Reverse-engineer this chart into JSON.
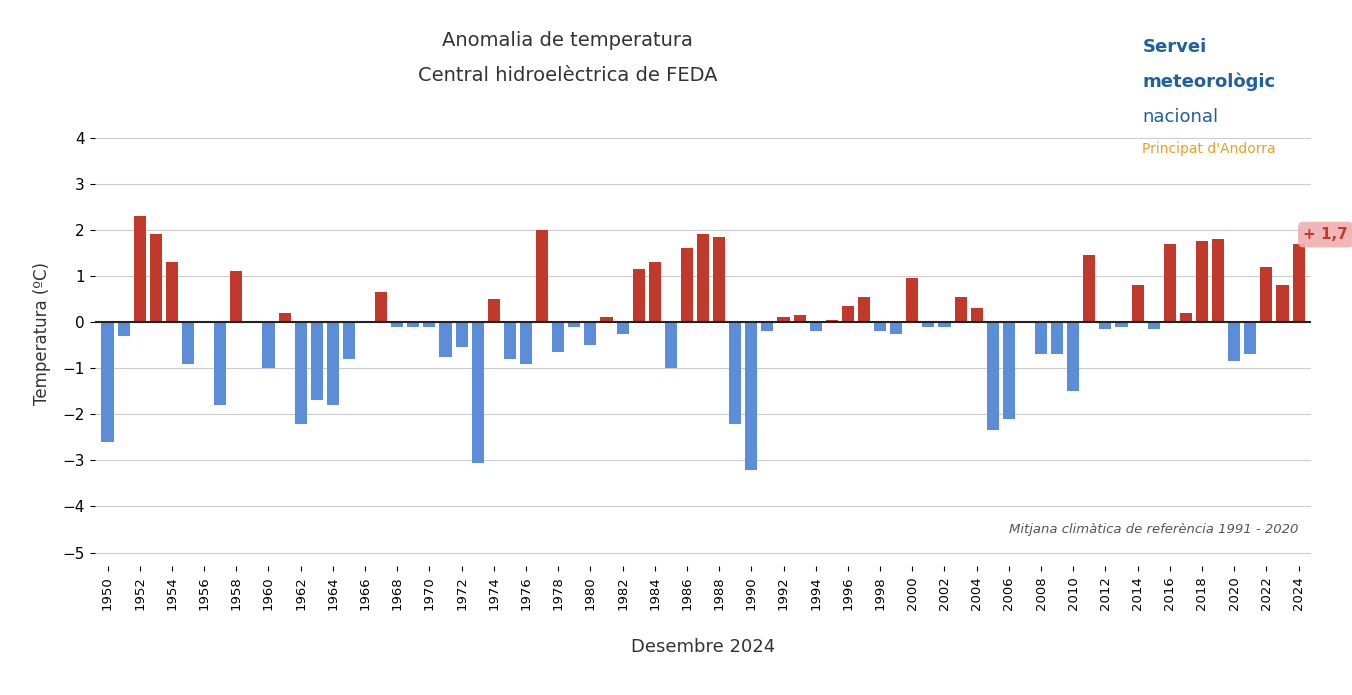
{
  "title_line1": "Anomalia de temperatura",
  "title_line2": "Central hidroelèctrica de FEDA",
  "xlabel": "Desembre 2024",
  "ylabel": "Temperatura (ºC)",
  "reference_text": "Mitjana climàtica de referència 1991 - 2020",
  "ylim": [
    -5.3,
    4.8
  ],
  "yticks": [
    -5,
    -4,
    -3,
    -2,
    -1,
    0,
    1,
    2,
    3,
    4
  ],
  "background_color": "#ffffff",
  "bar_color_pos": "#c0392b",
  "bar_color_neg": "#5b8dd9",
  "annotation_value": "+ 1,7",
  "annotation_color": "#c0392b",
  "annotation_bg": "#f0b0b0",
  "logo_servei": "Servei",
  "logo_meteo": "meteorològic",
  "logo_nacional": "nacional",
  "logo_principat": "Principat d'Andorra",
  "logo_color_blue": "#2060a0",
  "logo_color_orange": "#e8a020",
  "years": [
    1950,
    1951,
    1952,
    1953,
    1954,
    1955,
    1956,
    1957,
    1958,
    1959,
    1960,
    1961,
    1962,
    1963,
    1964,
    1965,
    1966,
    1967,
    1968,
    1969,
    1970,
    1971,
    1972,
    1973,
    1974,
    1975,
    1976,
    1977,
    1978,
    1979,
    1980,
    1981,
    1982,
    1983,
    1984,
    1985,
    1986,
    1987,
    1988,
    1989,
    1990,
    1991,
    1992,
    1993,
    1994,
    1995,
    1996,
    1997,
    1998,
    1999,
    2000,
    2001,
    2002,
    2003,
    2004,
    2005,
    2006,
    2007,
    2008,
    2009,
    2010,
    2011,
    2012,
    2013,
    2014,
    2015,
    2016,
    2017,
    2018,
    2019,
    2020,
    2021,
    2022,
    2023,
    2024
  ],
  "values": [
    -2.6,
    -0.3,
    2.3,
    1.9,
    1.3,
    -0.9,
    0.0,
    -1.8,
    1.1,
    0.0,
    -1.0,
    0.2,
    -2.2,
    -1.7,
    -1.8,
    -0.8,
    0.0,
    0.65,
    -0.1,
    -0.1,
    -0.1,
    -0.75,
    -0.55,
    -3.05,
    0.5,
    -0.8,
    -0.9,
    2.0,
    -0.65,
    -0.1,
    -0.5,
    0.1,
    -0.25,
    1.15,
    1.3,
    -1.0,
    1.6,
    1.9,
    1.85,
    -2.2,
    -3.2,
    -0.2,
    0.1,
    0.15,
    -0.2,
    0.05,
    0.35,
    0.55,
    -0.2,
    -0.25,
    0.95,
    -0.1,
    -0.1,
    0.55,
    0.3,
    -2.35,
    -2.1,
    0.0,
    -0.7,
    -0.7,
    -1.5,
    1.45,
    -0.15,
    -0.1,
    0.8,
    -0.15,
    1.7,
    0.2,
    1.75,
    1.8,
    -0.85,
    -0.7,
    1.2,
    0.8,
    1.7
  ]
}
